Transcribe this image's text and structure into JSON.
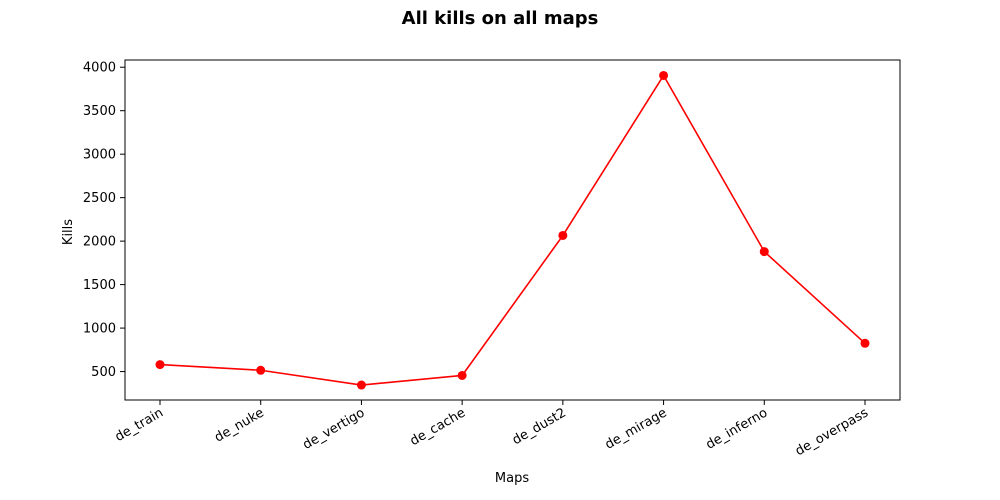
{
  "chart_data": {
    "type": "line",
    "title": "All kills on all maps",
    "xlabel": "Maps",
    "ylabel": "Kills",
    "categories": [
      "de_train",
      "de_nuke",
      "de_vertigo",
      "de_cache",
      "de_dust2",
      "de_mirage",
      "de_inferno",
      "de_overpass"
    ],
    "series": [
      {
        "values": [
          580,
          515,
          345,
          455,
          2065,
          3905,
          1880,
          825
        ],
        "color": "#ff0000",
        "marker": "circle"
      }
    ],
    "ylim": [
      173,
      4083
    ],
    "yticks": [
      500,
      1000,
      1500,
      2000,
      2500,
      3000,
      3500,
      4000
    ],
    "grid": false,
    "legend": "none"
  }
}
